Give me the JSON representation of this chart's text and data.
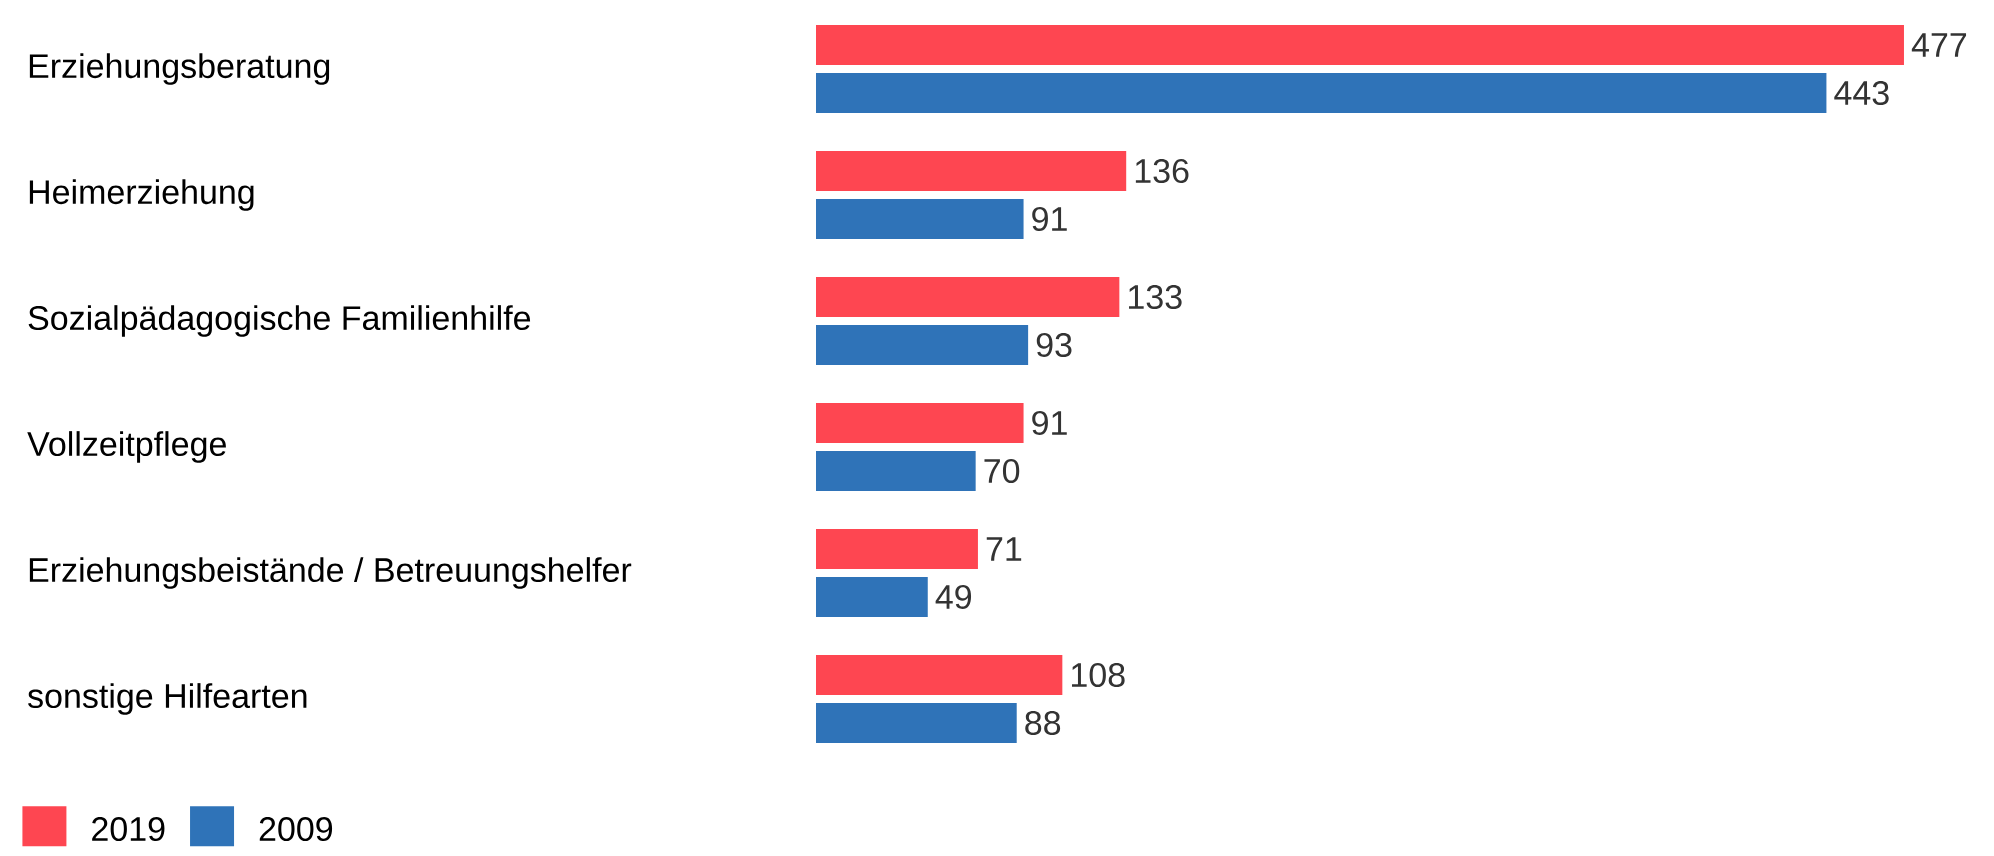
{
  "chart_data": {
    "type": "bar",
    "orientation": "horizontal",
    "categories": [
      "Erziehungsberatung",
      "Heimerziehung",
      "Sozialpädagogische Familienhilfe",
      "Vollzeitpflege",
      "Erziehungsbeistände / Betreuungshelfer",
      "sonstige Hilfearten"
    ],
    "series": [
      {
        "name": "2019",
        "color": "#fe4651",
        "values": [
          477,
          136,
          133,
          91,
          71,
          108
        ]
      },
      {
        "name": "2009",
        "color": "#2f73b8",
        "values": [
          443,
          91,
          93,
          70,
          49,
          88
        ]
      }
    ],
    "data_labels": true,
    "legend": "bottom left"
  }
}
